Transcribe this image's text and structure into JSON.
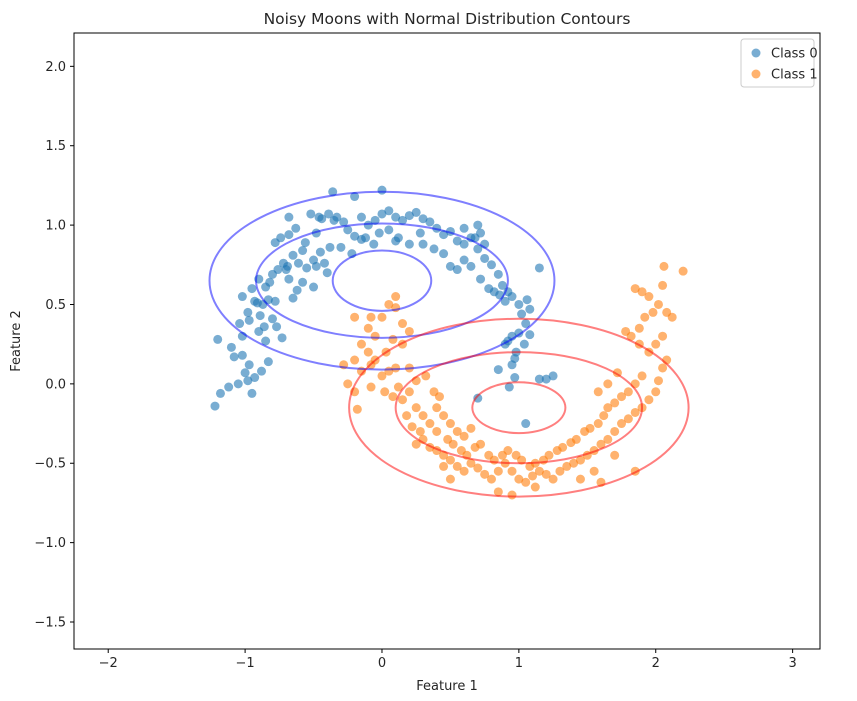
{
  "chart_data": {
    "type": "scatter",
    "title": "Noisy Moons with Normal Distribution Contours",
    "xlabel": "Feature 1",
    "ylabel": "Feature 2",
    "xlim": [
      -2.25,
      3.2
    ],
    "ylim": [
      -1.67,
      2.21
    ],
    "xticks": [
      -2,
      -1,
      0,
      1,
      2,
      3
    ],
    "yticks": [
      -1.5,
      -1.0,
      -0.5,
      0.0,
      0.5,
      1.0,
      1.5,
      2.0
    ],
    "xtick_labels": [
      "−2",
      "−1",
      "0",
      "1",
      "2",
      "3"
    ],
    "ytick_labels": [
      "−1.5",
      "−1.0",
      "−0.5",
      "0.0",
      "0.5",
      "1.0",
      "1.5",
      "2.0"
    ],
    "grid": false,
    "legend_position": "top-right",
    "series": [
      {
        "name": "Class 0",
        "color": "#1f77b4",
        "contour_color": "#0000ff",
        "contour_center": [
          0.0,
          0.65
        ],
        "contour_radii": [
          [
            0.36,
            0.19
          ],
          [
            0.92,
            0.36
          ],
          [
            1.26,
            0.56
          ]
        ],
        "points": [
          [
            -1.22,
            -0.14
          ],
          [
            -1.18,
            -0.06
          ],
          [
            -1.12,
            -0.02
          ],
          [
            -1.05,
            0.0
          ],
          [
            -0.98,
            0.02
          ],
          [
            -0.95,
            -0.06
          ],
          [
            -0.93,
            0.04
          ],
          [
            -0.88,
            0.08
          ],
          [
            -0.83,
            0.14
          ],
          [
            -1.0,
            0.07
          ],
          [
            -1.08,
            0.17
          ],
          [
            -1.1,
            0.23
          ],
          [
            -1.2,
            0.28
          ],
          [
            -1.02,
            0.18
          ],
          [
            -0.97,
            0.12
          ],
          [
            -1.02,
            0.3
          ],
          [
            -1.04,
            0.38
          ],
          [
            -0.98,
            0.45
          ],
          [
            -0.93,
            0.52
          ],
          [
            -0.89,
            0.43
          ],
          [
            -0.86,
            0.36
          ],
          [
            -0.85,
            0.27
          ],
          [
            -0.9,
            0.33
          ],
          [
            -0.8,
            0.41
          ],
          [
            -0.77,
            0.36
          ],
          [
            -0.73,
            0.29
          ],
          [
            -1.02,
            0.55
          ],
          [
            -0.95,
            0.6
          ],
          [
            -0.9,
            0.66
          ],
          [
            -0.85,
            0.61
          ],
          [
            -0.82,
            0.64
          ],
          [
            -0.87,
            0.5
          ],
          [
            -0.83,
            0.53
          ],
          [
            -0.91,
            0.51
          ],
          [
            -0.97,
            0.4
          ],
          [
            -0.78,
            0.52
          ],
          [
            -0.8,
            0.69
          ],
          [
            -0.76,
            0.72
          ],
          [
            -0.72,
            0.76
          ],
          [
            -0.69,
            0.74
          ],
          [
            -0.65,
            0.81
          ],
          [
            -0.78,
            0.89
          ],
          [
            -0.74,
            0.92
          ],
          [
            -0.68,
            0.94
          ],
          [
            -0.63,
            0.98
          ],
          [
            -0.56,
            0.89
          ],
          [
            -0.58,
            0.84
          ],
          [
            -0.61,
            0.76
          ],
          [
            -0.55,
            0.73
          ],
          [
            -0.5,
            0.78
          ],
          [
            -0.45,
            0.83
          ],
          [
            -0.38,
            0.86
          ],
          [
            -0.48,
            0.95
          ],
          [
            -0.44,
            1.04
          ],
          [
            -0.39,
            1.07
          ],
          [
            -0.33,
            1.05
          ],
          [
            -0.28,
            1.02
          ],
          [
            -0.25,
            0.97
          ],
          [
            -0.2,
            0.93
          ],
          [
            -0.15,
            0.91
          ],
          [
            -0.1,
            1.0
          ],
          [
            -0.05,
            1.03
          ],
          [
            0.0,
            1.07
          ],
          [
            0.05,
            1.09
          ],
          [
            0.1,
            1.05
          ],
          [
            0.15,
            1.03
          ],
          [
            0.2,
            1.06
          ],
          [
            0.25,
            1.08
          ],
          [
            0.3,
            1.04
          ],
          [
            0.35,
            1.02
          ],
          [
            0.4,
            0.98
          ],
          [
            0.45,
            0.94
          ],
          [
            0.5,
            0.96
          ],
          [
            0.55,
            0.9
          ],
          [
            0.6,
            0.88
          ],
          [
            0.65,
            0.92
          ],
          [
            0.7,
            0.85
          ],
          [
            0.75,
            0.79
          ],
          [
            0.8,
            0.75
          ],
          [
            0.85,
            0.69
          ],
          [
            0.88,
            0.62
          ],
          [
            0.92,
            0.58
          ],
          [
            0.95,
            0.55
          ],
          [
            1.0,
            0.5
          ],
          [
            1.02,
            0.44
          ],
          [
            1.05,
            0.38
          ],
          [
            1.08,
            0.31
          ],
          [
            1.04,
            0.25
          ],
          [
            0.98,
            0.2
          ],
          [
            0.95,
            0.12
          ],
          [
            0.97,
            0.04
          ],
          [
            0.93,
            -0.02
          ],
          [
            0.85,
            0.09
          ],
          [
            0.92,
            0.27
          ],
          [
            1.15,
            0.03
          ],
          [
            1.2,
            0.03
          ],
          [
            1.25,
            0.05
          ],
          [
            1.15,
            0.73
          ],
          [
            0.7,
            -0.09
          ],
          [
            1.05,
            -0.25
          ],
          [
            -0.36,
            1.21
          ],
          [
            0.0,
            1.22
          ],
          [
            -0.2,
            1.18
          ],
          [
            -0.68,
            1.05
          ],
          [
            -0.52,
            1.07
          ],
          [
            -0.46,
            1.05
          ],
          [
            0.28,
            0.95
          ],
          [
            0.12,
            0.92
          ],
          [
            -0.02,
            0.95
          ],
          [
            -0.06,
            0.88
          ],
          [
            -0.12,
            0.92
          ],
          [
            -0.3,
            0.86
          ],
          [
            -0.22,
            0.82
          ],
          [
            -0.42,
            0.76
          ],
          [
            -0.4,
            0.7
          ],
          [
            -0.48,
            0.74
          ],
          [
            -0.65,
            0.54
          ],
          [
            -0.62,
            0.59
          ],
          [
            -0.68,
            0.66
          ],
          [
            -0.7,
            0.72
          ],
          [
            -0.58,
            0.64
          ],
          [
            -0.5,
            0.61
          ],
          [
            0.45,
            0.82
          ],
          [
            0.5,
            0.74
          ],
          [
            0.55,
            0.72
          ],
          [
            0.6,
            0.78
          ],
          [
            0.65,
            0.74
          ],
          [
            0.72,
            0.66
          ],
          [
            0.78,
            0.6
          ],
          [
            0.82,
            0.58
          ],
          [
            0.86,
            0.56
          ],
          [
            0.9,
            0.52
          ],
          [
            1.06,
            0.53
          ],
          [
            1.08,
            0.47
          ],
          [
            1.0,
            0.32
          ],
          [
            0.95,
            0.3
          ],
          [
            0.9,
            0.25
          ],
          [
            0.97,
            0.16
          ],
          [
            0.3,
            0.88
          ],
          [
            0.2,
            0.88
          ],
          [
            0.1,
            0.9
          ],
          [
            0.05,
            0.97
          ],
          [
            -0.15,
            1.05
          ],
          [
            -0.35,
            1.03
          ],
          [
            0.7,
            1.0
          ],
          [
            0.72,
            0.95
          ],
          [
            0.68,
            0.92
          ],
          [
            0.6,
            0.98
          ],
          [
            0.75,
            0.88
          ],
          [
            0.38,
            0.85
          ]
        ]
      },
      {
        "name": "Class 1",
        "color": "#ff7f0e",
        "contour_color": "#ff0000",
        "contour_center": [
          1.0,
          -0.15
        ],
        "contour_radii": [
          [
            0.34,
            0.16
          ],
          [
            0.9,
            0.35
          ],
          [
            1.24,
            0.56
          ]
        ],
        "points": [
          [
            -0.2,
            0.42
          ],
          [
            -0.1,
            0.35
          ],
          [
            -0.05,
            0.3
          ],
          [
            0.0,
            0.42
          ],
          [
            0.05,
            0.5
          ],
          [
            0.1,
            0.55
          ],
          [
            0.1,
            0.48
          ],
          [
            0.15,
            0.38
          ],
          [
            0.2,
            0.33
          ],
          [
            0.15,
            0.25
          ],
          [
            0.08,
            0.28
          ],
          [
            0.03,
            0.2
          ],
          [
            -0.05,
            0.15
          ],
          [
            -0.1,
            0.2
          ],
          [
            -0.15,
            0.25
          ],
          [
            -0.2,
            0.15
          ],
          [
            -0.15,
            0.08
          ],
          [
            -0.08,
            0.12
          ],
          [
            -0.28,
            0.12
          ],
          [
            -0.25,
            0.0
          ],
          [
            -0.2,
            -0.05
          ],
          [
            -0.18,
            -0.16
          ],
          [
            -0.08,
            -0.02
          ],
          [
            0.0,
            0.05
          ],
          [
            0.05,
            0.08
          ],
          [
            0.1,
            0.1
          ],
          [
            0.12,
            -0.02
          ],
          [
            0.08,
            -0.08
          ],
          [
            0.02,
            -0.05
          ],
          [
            0.15,
            -0.1
          ],
          [
            0.2,
            -0.05
          ],
          [
            0.25,
            -0.15
          ],
          [
            0.18,
            -0.2
          ],
          [
            0.22,
            -0.27
          ],
          [
            0.28,
            -0.3
          ],
          [
            0.3,
            -0.35
          ],
          [
            0.25,
            -0.38
          ],
          [
            0.35,
            -0.4
          ],
          [
            0.4,
            -0.42
          ],
          [
            0.45,
            -0.45
          ],
          [
            0.5,
            -0.48
          ],
          [
            0.55,
            -0.52
          ],
          [
            0.6,
            -0.55
          ],
          [
            0.65,
            -0.5
          ],
          [
            0.7,
            -0.53
          ],
          [
            0.75,
            -0.57
          ],
          [
            0.8,
            -0.6
          ],
          [
            0.85,
            -0.55
          ],
          [
            0.9,
            -0.5
          ],
          [
            0.95,
            -0.55
          ],
          [
            1.0,
            -0.6
          ],
          [
            1.05,
            -0.62
          ],
          [
            1.1,
            -0.58
          ],
          [
            1.15,
            -0.55
          ],
          [
            1.2,
            -0.57
          ],
          [
            1.25,
            -0.6
          ],
          [
            1.3,
            -0.55
          ],
          [
            1.35,
            -0.52
          ],
          [
            1.4,
            -0.5
          ],
          [
            1.45,
            -0.48
          ],
          [
            1.5,
            -0.45
          ],
          [
            1.55,
            -0.42
          ],
          [
            1.6,
            -0.38
          ],
          [
            1.65,
            -0.35
          ],
          [
            1.7,
            -0.3
          ],
          [
            1.75,
            -0.25
          ],
          [
            1.8,
            -0.22
          ],
          [
            1.85,
            -0.18
          ],
          [
            1.9,
            -0.15
          ],
          [
            1.95,
            -0.1
          ],
          [
            2.0,
            -0.05
          ],
          [
            2.02,
            0.02
          ],
          [
            2.05,
            0.1
          ],
          [
            2.08,
            0.15
          ],
          [
            1.9,
            0.05
          ],
          [
            1.85,
            0.0
          ],
          [
            1.8,
            -0.05
          ],
          [
            1.75,
            -0.08
          ],
          [
            1.7,
            -0.12
          ],
          [
            1.65,
            -0.15
          ],
          [
            1.95,
            0.2
          ],
          [
            2.0,
            0.25
          ],
          [
            2.05,
            0.3
          ],
          [
            1.88,
            0.35
          ],
          [
            1.92,
            0.42
          ],
          [
            1.98,
            0.45
          ],
          [
            2.08,
            0.45
          ],
          [
            2.12,
            0.42
          ],
          [
            1.95,
            0.55
          ],
          [
            2.02,
            0.5
          ],
          [
            1.85,
            0.6
          ],
          [
            1.88,
            0.25
          ],
          [
            1.82,
            0.3
          ],
          [
            1.78,
            0.33
          ],
          [
            2.06,
            0.74
          ],
          [
            2.2,
            0.71
          ],
          [
            2.05,
            0.62
          ],
          [
            1.9,
            0.58
          ],
          [
            0.4,
            -0.3
          ],
          [
            0.48,
            -0.35
          ],
          [
            0.52,
            -0.38
          ],
          [
            0.58,
            -0.42
          ],
          [
            0.62,
            -0.45
          ],
          [
            0.68,
            -0.4
          ],
          [
            0.72,
            -0.38
          ],
          [
            0.78,
            -0.45
          ],
          [
            0.82,
            -0.48
          ],
          [
            0.88,
            -0.45
          ],
          [
            0.92,
            -0.42
          ],
          [
            0.98,
            -0.45
          ],
          [
            1.02,
            -0.48
          ],
          [
            1.08,
            -0.52
          ],
          [
            1.12,
            -0.5
          ],
          [
            1.18,
            -0.48
          ],
          [
            1.22,
            -0.45
          ],
          [
            1.28,
            -0.42
          ],
          [
            1.32,
            -0.4
          ],
          [
            1.38,
            -0.37
          ],
          [
            1.42,
            -0.35
          ],
          [
            1.48,
            -0.3
          ],
          [
            1.52,
            -0.28
          ],
          [
            1.58,
            -0.25
          ],
          [
            1.62,
            -0.2
          ],
          [
            0.3,
            -0.2
          ],
          [
            0.35,
            -0.25
          ],
          [
            0.4,
            -0.15
          ],
          [
            0.45,
            -0.2
          ],
          [
            0.5,
            -0.25
          ],
          [
            0.55,
            -0.3
          ],
          [
            0.6,
            -0.33
          ],
          [
            0.65,
            -0.28
          ],
          [
            0.32,
            0.05
          ],
          [
            0.38,
            -0.05
          ],
          [
            0.42,
            -0.08
          ],
          [
            0.25,
            0.02
          ],
          [
            0.2,
            0.1
          ],
          [
            -0.08,
            0.42
          ],
          [
            1.45,
            -0.6
          ],
          [
            1.55,
            -0.55
          ],
          [
            0.5,
            -0.6
          ],
          [
            0.45,
            -0.52
          ],
          [
            1.85,
            -0.55
          ],
          [
            1.7,
            -0.45
          ],
          [
            1.6,
            -0.62
          ],
          [
            0.85,
            -0.68
          ],
          [
            0.95,
            -0.7
          ],
          [
            1.12,
            -0.65
          ],
          [
            1.65,
            0.0
          ],
          [
            1.58,
            -0.05
          ],
          [
            1.72,
            0.07
          ]
        ]
      }
    ]
  }
}
